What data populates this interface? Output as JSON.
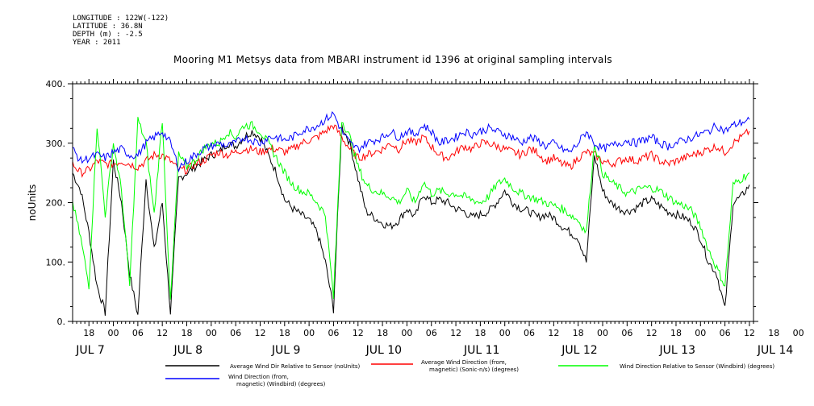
{
  "header": {
    "meta": [
      "LONGITUDE : 122W(-122)",
      "LATITUDE : 36.8N",
      "DEPTH (m) : -2.5",
      "YEAR : 2011"
    ],
    "title": "Mooring M1 Metsys data from MBARI instrument id 1396 at original sampling intervals"
  },
  "chart_data": {
    "type": "line",
    "title": "Mooring M1 Metsys data from MBARI instrument id 1396 at original sampling intervals",
    "ylabel": "noUnits",
    "ylim": [
      0,
      400
    ],
    "yticks": [
      0,
      100,
      200,
      300,
      400
    ],
    "ytick_labels": [
      "0.",
      "100.",
      "200.",
      "300.",
      "400."
    ],
    "x_hour_labels": [
      "18",
      "00",
      "06",
      "12",
      "18",
      "00",
      "06",
      "12",
      "18",
      "00",
      "06",
      "12",
      "18",
      "00",
      "06",
      "12",
      "18",
      "00",
      "06",
      "12",
      "18",
      "00",
      "06",
      "12",
      "18",
      "00",
      "06",
      "12",
      "18",
      "00",
      "06",
      "12",
      "18",
      "00",
      "06",
      "12"
    ],
    "x_date_labels": [
      "JUL  7",
      "JUL  8",
      "JUL  9",
      "JUL 10",
      "JUL 11",
      "JUL 12",
      "JUL 13",
      "JUL 14"
    ],
    "x_units": "hours since JUL 7 00:00 (2011)",
    "xlim": [
      14,
      181
    ],
    "series": [
      {
        "name": "Average Wind Dir Relative to Sensor (noUnits)",
        "color": "#000000",
        "x": [
          14,
          16,
          18,
          20,
          22,
          24,
          26,
          28,
          30,
          32,
          34,
          36,
          38,
          40,
          42,
          44,
          46,
          48,
          50,
          52,
          54,
          56,
          58,
          60,
          62,
          64,
          66,
          68,
          70,
          72,
          74,
          76,
          78,
          80,
          82,
          84,
          86,
          88,
          90,
          92,
          94,
          96,
          98,
          100,
          102,
          104,
          106,
          108,
          110,
          112,
          114,
          116,
          118,
          120,
          122,
          124,
          126,
          128,
          130,
          132,
          134,
          136,
          138,
          140,
          142,
          144,
          146,
          148,
          150,
          152,
          154,
          156,
          158,
          160,
          162,
          164,
          166,
          168,
          170,
          172,
          174,
          176,
          178,
          180
        ],
        "values": [
          250,
          220,
          150,
          60,
          15,
          270,
          200,
          80,
          10,
          240,
          120,
          200,
          15,
          240,
          250,
          260,
          270,
          280,
          285,
          300,
          295,
          310,
          320,
          310,
          280,
          250,
          205,
          190,
          180,
          170,
          150,
          100,
          20,
          330,
          300,
          240,
          185,
          175,
          165,
          160,
          170,
          190,
          175,
          215,
          200,
          205,
          200,
          190,
          185,
          175,
          180,
          185,
          200,
          220,
          200,
          190,
          185,
          175,
          180,
          175,
          160,
          150,
          140,
          100,
          280,
          220,
          200,
          190,
          185,
          190,
          200,
          205,
          195,
          185,
          180,
          175,
          165,
          140,
          100,
          80,
          20,
          200,
          210,
          230
        ]
      },
      {
        "name": "Average Wind Direction (from, magnetic) (Sonic-n/s) (degrees)",
        "color": "#ff0000",
        "x": [
          14,
          16,
          18,
          20,
          22,
          24,
          26,
          28,
          30,
          32,
          34,
          36,
          38,
          40,
          42,
          44,
          46,
          48,
          50,
          52,
          54,
          56,
          58,
          60,
          62,
          64,
          66,
          68,
          70,
          72,
          74,
          76,
          78,
          80,
          82,
          84,
          86,
          88,
          90,
          92,
          94,
          96,
          98,
          100,
          102,
          104,
          106,
          108,
          110,
          112,
          114,
          116,
          118,
          120,
          122,
          124,
          126,
          128,
          130,
          132,
          134,
          136,
          138,
          140,
          142,
          144,
          146,
          148,
          150,
          152,
          154,
          156,
          158,
          160,
          162,
          164,
          166,
          168,
          170,
          172,
          174,
          176,
          178,
          180
        ],
        "values": [
          265,
          250,
          255,
          270,
          265,
          265,
          270,
          265,
          260,
          270,
          280,
          280,
          270,
          255,
          255,
          265,
          270,
          280,
          285,
          280,
          285,
          290,
          290,
          285,
          290,
          290,
          285,
          290,
          300,
          305,
          310,
          320,
          330,
          310,
          290,
          275,
          280,
          285,
          290,
          300,
          290,
          305,
          300,
          310,
          295,
          280,
          275,
          285,
          295,
          290,
          300,
          300,
          295,
          290,
          285,
          280,
          290,
          285,
          270,
          275,
          265,
          260,
          275,
          285,
          280,
          270,
          265,
          270,
          275,
          270,
          275,
          280,
          270,
          265,
          270,
          275,
          280,
          285,
          290,
          295,
          285,
          300,
          310,
          320
        ]
      },
      {
        "name": "Wind Direction Relative to Sensor (Windbird) (degrees)",
        "color": "#00ff00",
        "x": [
          14,
          16,
          18,
          20,
          22,
          24,
          26,
          28,
          30,
          32,
          34,
          36,
          38,
          40,
          42,
          44,
          46,
          48,
          50,
          52,
          54,
          56,
          58,
          60,
          62,
          64,
          66,
          68,
          70,
          72,
          74,
          76,
          78,
          80,
          82,
          84,
          86,
          88,
          90,
          92,
          94,
          96,
          98,
          100,
          102,
          104,
          106,
          108,
          110,
          112,
          114,
          116,
          118,
          120,
          122,
          124,
          126,
          128,
          130,
          132,
          134,
          136,
          138,
          140,
          142,
          144,
          146,
          148,
          150,
          152,
          154,
          156,
          158,
          160,
          162,
          164,
          166,
          168,
          170,
          172,
          174,
          176,
          178,
          180
        ],
        "values": [
          200,
          140,
          60,
          330,
          180,
          300,
          220,
          60,
          340,
          300,
          180,
          340,
          30,
          280,
          260,
          270,
          290,
          300,
          300,
          320,
          310,
          330,
          330,
          320,
          300,
          275,
          250,
          230,
          220,
          215,
          200,
          180,
          40,
          340,
          310,
          260,
          230,
          220,
          215,
          210,
          200,
          220,
          200,
          235,
          215,
          220,
          215,
          215,
          210,
          205,
          200,
          210,
          230,
          240,
          225,
          215,
          210,
          205,
          200,
          195,
          190,
          180,
          170,
          150,
          300,
          250,
          235,
          225,
          215,
          220,
          225,
          225,
          220,
          210,
          200,
          195,
          185,
          160,
          120,
          90,
          60,
          230,
          240,
          250
        ]
      },
      {
        "name": "Wind Direction (from, magnetic) (Windbird) (degrees)",
        "color": "#0000ff",
        "x": [
          14,
          16,
          18,
          20,
          22,
          24,
          26,
          28,
          30,
          32,
          34,
          36,
          38,
          40,
          42,
          44,
          46,
          48,
          50,
          52,
          54,
          56,
          58,
          60,
          62,
          64,
          66,
          68,
          70,
          72,
          74,
          76,
          78,
          80,
          82,
          84,
          86,
          88,
          90,
          92,
          94,
          96,
          98,
          100,
          102,
          104,
          106,
          108,
          110,
          112,
          114,
          116,
          118,
          120,
          122,
          124,
          126,
          128,
          130,
          132,
          134,
          136,
          138,
          140,
          142,
          144,
          146,
          148,
          150,
          152,
          154,
          156,
          158,
          160,
          162,
          164,
          166,
          168,
          170,
          172,
          174,
          176,
          178,
          180
        ],
        "values": [
          290,
          270,
          275,
          280,
          275,
          285,
          290,
          280,
          280,
          300,
          310,
          320,
          300,
          260,
          270,
          280,
          290,
          295,
          300,
          295,
          300,
          310,
          305,
          300,
          310,
          310,
          305,
          310,
          320,
          325,
          330,
          340,
          350,
          320,
          300,
          290,
          300,
          305,
          310,
          320,
          310,
          320,
          315,
          330,
          320,
          300,
          305,
          310,
          320,
          315,
          320,
          325,
          320,
          315,
          310,
          300,
          310,
          305,
          295,
          300,
          290,
          285,
          300,
          320,
          300,
          290,
          295,
          300,
          305,
          300,
          305,
          310,
          300,
          295,
          300,
          305,
          310,
          315,
          320,
          330,
          320,
          330,
          335,
          340
        ]
      }
    ],
    "legend": [
      {
        "label_lines": [
          "Average Wind Dir Relative to Sensor (noUnits)"
        ],
        "color": "#000000"
      },
      {
        "label_lines": [
          "Average Wind Direction (from,",
          "magnetic) (Sonic-n/s) (degrees)"
        ],
        "color": "#ff0000"
      },
      {
        "label_lines": [
          "Wind Direction Relative to Sensor (Windbird) (degrees)"
        ],
        "color": "#00ff00"
      },
      {
        "label_lines": [
          "Wind Direction (from,",
          "magnetic) (Windbird) (degrees)"
        ],
        "color": "#0000ff"
      }
    ]
  }
}
